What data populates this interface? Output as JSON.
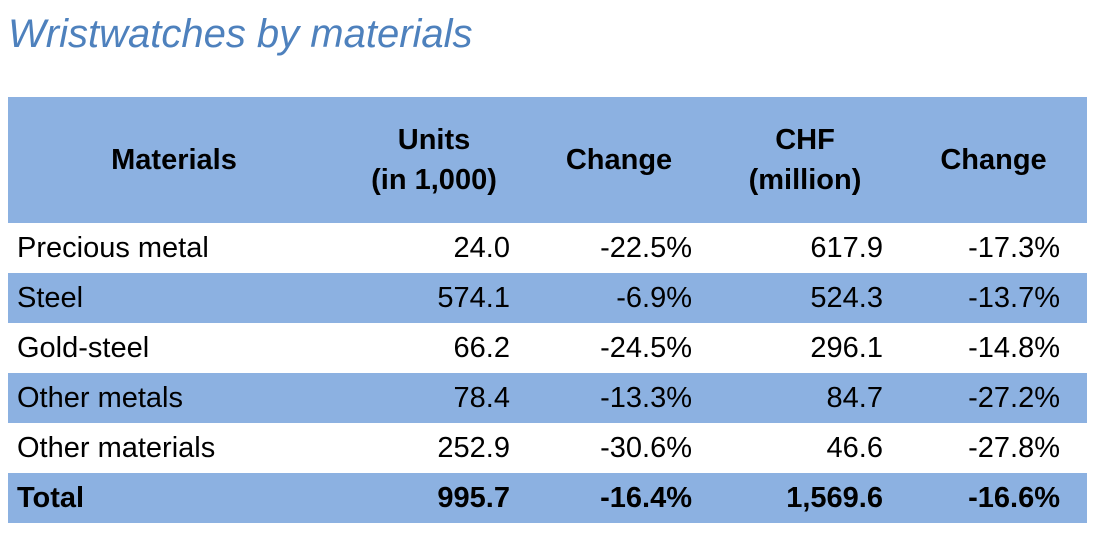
{
  "colors": {
    "row_blue": "#8CB1E1",
    "title_blue": "#4E81BD",
    "text_black": "#000000",
    "row_white": "#FFFFFF"
  },
  "chart_data": {
    "type": "table",
    "title": "Wristwatches by materials",
    "columns": [
      "Materials",
      "Units (in 1,000)",
      "Change",
      "CHF (million)",
      "Change"
    ],
    "header": [
      {
        "line1": "Materials",
        "line2": ""
      },
      {
        "line1": "Units",
        "line2": "(in 1,000)"
      },
      {
        "line1": "Change",
        "line2": ""
      },
      {
        "line1": "CHF",
        "line2": "(million)"
      },
      {
        "line1": "Change",
        "line2": ""
      }
    ],
    "rows": [
      {
        "material": "Precious metal",
        "units": "24.0",
        "units_change": "-22.5%",
        "chf": "617.9",
        "chf_change": "-17.3%"
      },
      {
        "material": "Steel",
        "units": "574.1",
        "units_change": "-6.9%",
        "chf": "524.3",
        "chf_change": "-13.7%"
      },
      {
        "material": "Gold-steel",
        "units": "66.2",
        "units_change": "-24.5%",
        "chf": "296.1",
        "chf_change": "-14.8%"
      },
      {
        "material": "Other metals",
        "units": "78.4",
        "units_change": "-13.3%",
        "chf": "84.7",
        "chf_change": "-27.2%"
      },
      {
        "material": "Other materials",
        "units": "252.9",
        "units_change": "-30.6%",
        "chf": "46.6",
        "chf_change": "-27.8%"
      }
    ],
    "total": {
      "material": "Total",
      "units": "995.7",
      "units_change": "-16.4%",
      "chf": "1,569.6",
      "chf_change": "-16.6%"
    }
  }
}
